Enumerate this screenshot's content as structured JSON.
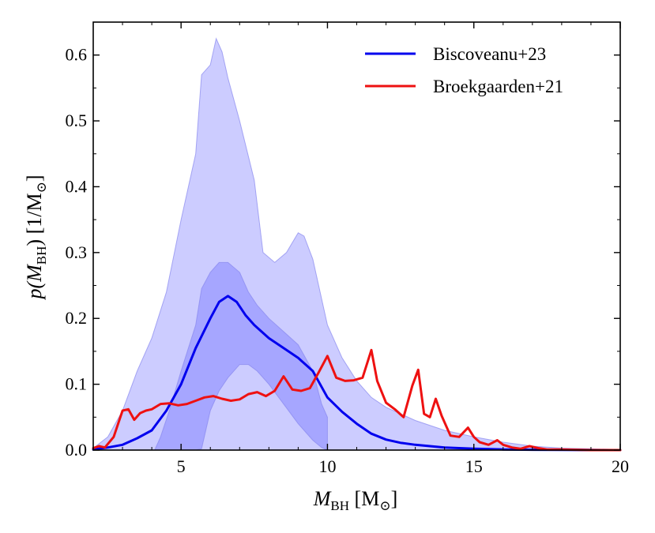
{
  "chart_data": {
    "type": "line",
    "title": "",
    "xlabel": {
      "prefix": "M",
      "subscript": "BH",
      "suffix": " [M",
      "unit_symbol": "⊙",
      "close": "]"
    },
    "ylabel": {
      "prefix": "p(M",
      "subscript": "BH",
      "suffix": ") [1/M",
      "unit_symbol": "⊙",
      "close": "]"
    },
    "xlim": [
      2,
      20
    ],
    "ylim": [
      0,
      0.65
    ],
    "xticks": [
      5,
      10,
      15,
      20
    ],
    "xtick_labels": [
      "5",
      "10",
      "15",
      "20"
    ],
    "yticks": [
      0.0,
      0.1,
      0.2,
      0.3,
      0.4,
      0.5,
      0.6
    ],
    "ytick_labels": [
      "0.0",
      "0.1",
      "0.2",
      "0.3",
      "0.4",
      "0.5",
      "0.6"
    ],
    "legend_position": "top-right",
    "colors": {
      "blue_line": "#0000ee",
      "red_line": "#ee1111",
      "band_outer": "#ccccff",
      "band_inner": "#9999ff",
      "band_edge": "#8888ee"
    },
    "series": [
      {
        "name": "Biscoveanu+23",
        "color": "#0000ee",
        "x": [
          2.0,
          2.5,
          3.0,
          3.5,
          4.0,
          4.5,
          5.0,
          5.5,
          6.0,
          6.3,
          6.6,
          6.9,
          7.2,
          7.5,
          8.0,
          8.5,
          9.0,
          9.5,
          10.0,
          10.5,
          11.0,
          11.5,
          12.0,
          12.5,
          13.0,
          14.0,
          15.0,
          16.0,
          17.0,
          18.0,
          20.0
        ],
        "values": [
          0.001,
          0.004,
          0.008,
          0.018,
          0.03,
          0.06,
          0.1,
          0.155,
          0.2,
          0.225,
          0.234,
          0.225,
          0.205,
          0.19,
          0.17,
          0.155,
          0.14,
          0.12,
          0.08,
          0.058,
          0.04,
          0.025,
          0.016,
          0.011,
          0.008,
          0.004,
          0.002,
          0.001,
          0.0005,
          0.0002,
          0.0
        ]
      },
      {
        "name": "Broekgaarden+21",
        "color": "#ee1111",
        "x": [
          2.0,
          2.2,
          2.4,
          2.7,
          3.0,
          3.2,
          3.4,
          3.6,
          3.8,
          4.0,
          4.3,
          4.6,
          4.9,
          5.2,
          5.5,
          5.8,
          6.1,
          6.4,
          6.7,
          7.0,
          7.3,
          7.6,
          7.9,
          8.2,
          8.5,
          8.8,
          9.1,
          9.4,
          9.7,
          10.0,
          10.3,
          10.6,
          10.9,
          11.2,
          11.5,
          11.7,
          12.0,
          12.3,
          12.6,
          12.9,
          13.1,
          13.3,
          13.5,
          13.7,
          13.9,
          14.2,
          14.5,
          14.8,
          15.0,
          15.2,
          15.5,
          15.8,
          16.0,
          16.3,
          16.6,
          16.9,
          17.2,
          17.5,
          18.0,
          19.0,
          20.0
        ],
        "values": [
          0.003,
          0.006,
          0.004,
          0.02,
          0.06,
          0.062,
          0.046,
          0.056,
          0.06,
          0.062,
          0.07,
          0.071,
          0.068,
          0.07,
          0.075,
          0.08,
          0.082,
          0.078,
          0.075,
          0.077,
          0.085,
          0.088,
          0.082,
          0.09,
          0.112,
          0.092,
          0.09,
          0.094,
          0.118,
          0.143,
          0.11,
          0.105,
          0.106,
          0.11,
          0.152,
          0.105,
          0.072,
          0.062,
          0.05,
          0.098,
          0.122,
          0.055,
          0.05,
          0.078,
          0.052,
          0.022,
          0.02,
          0.034,
          0.02,
          0.012,
          0.008,
          0.015,
          0.008,
          0.004,
          0.002,
          0.006,
          0.003,
          0.001,
          0.001,
          0.0,
          0.0
        ]
      }
    ],
    "bands": [
      {
        "name": "outer credible band",
        "color": "#ccccff",
        "x": [
          2.0,
          2.5,
          3.0,
          3.5,
          4.0,
          4.5,
          5.0,
          5.5,
          5.7,
          6.0,
          6.2,
          6.4,
          6.6,
          7.0,
          7.5,
          7.8,
          8.2,
          8.6,
          9.0,
          9.2,
          9.5,
          10.0,
          10.5,
          11.0,
          11.5,
          12.0,
          13.0,
          14.0,
          15.0,
          16.0,
          17.0,
          18.0,
          20.0
        ],
        "upper": [
          0.003,
          0.02,
          0.06,
          0.12,
          0.17,
          0.24,
          0.35,
          0.45,
          0.57,
          0.585,
          0.625,
          0.605,
          0.565,
          0.5,
          0.41,
          0.3,
          0.285,
          0.3,
          0.33,
          0.325,
          0.29,
          0.19,
          0.14,
          0.105,
          0.08,
          0.065,
          0.045,
          0.03,
          0.02,
          0.012,
          0.006,
          0.003,
          0.001
        ],
        "lower": [
          0.0,
          0.0,
          0.0,
          0.0,
          0.0,
          0.0,
          0.0,
          0.0,
          0.0,
          0.0,
          0.0,
          0.0,
          0.0,
          0.0,
          0.0,
          0.0,
          0.0,
          0.0,
          0.0,
          0.0,
          0.0,
          0.0,
          0.0,
          0.0,
          0.0,
          0.0,
          0.0,
          0.0,
          0.0,
          0.0,
          0.0,
          0.0,
          0.0
        ]
      },
      {
        "name": "inner credible band",
        "color": "#9999ff",
        "x": [
          4.1,
          4.3,
          4.6,
          5.0,
          5.5,
          5.7,
          6.0,
          6.3,
          6.6,
          7.0,
          7.3,
          7.6,
          8.0,
          8.5,
          9.0,
          9.5,
          9.8,
          10.0
        ],
        "upper": [
          0.0,
          0.02,
          0.06,
          0.12,
          0.19,
          0.245,
          0.27,
          0.285,
          0.285,
          0.27,
          0.24,
          0.22,
          0.2,
          0.18,
          0.16,
          0.12,
          0.07,
          0.05
        ],
        "lower": [
          0.0,
          0.0,
          0.0,
          0.0,
          0.0,
          0.002,
          0.06,
          0.09,
          0.11,
          0.13,
          0.13,
          0.12,
          0.1,
          0.07,
          0.04,
          0.015,
          0.004,
          0.0
        ]
      }
    ]
  }
}
